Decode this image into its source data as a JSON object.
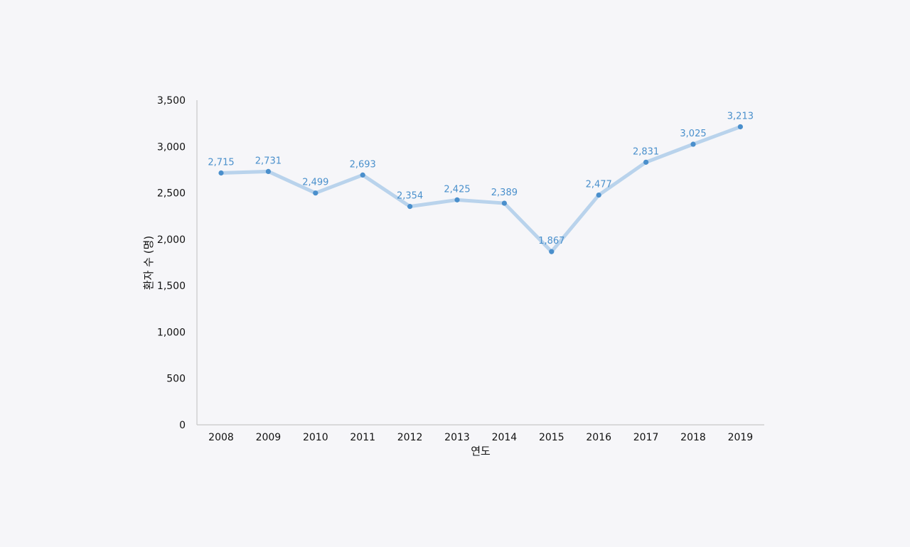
{
  "chart_data": {
    "type": "line",
    "title": "",
    "xlabel": "연도",
    "ylabel": "환자 수 (명)",
    "ylim": [
      0,
      3500
    ],
    "yticks": [
      0,
      500,
      1000,
      1500,
      2000,
      2500,
      3000,
      3500
    ],
    "ytick_labels": [
      "0",
      "500",
      "1,000",
      "1,500",
      "2,000",
      "2,500",
      "3,000",
      "3,500"
    ],
    "categories": [
      "2008",
      "2009",
      "2010",
      "2011",
      "2012",
      "2013",
      "2014",
      "2015",
      "2016",
      "2017",
      "2018",
      "2019"
    ],
    "values": [
      2715,
      2731,
      2499,
      2693,
      2354,
      2425,
      2389,
      1867,
      2477,
      2831,
      3025,
      3213
    ],
    "data_labels": [
      "2,715",
      "2,731",
      "2,499",
      "2,693",
      "2,354",
      "2,425",
      "2,389",
      "1,867",
      "2,477",
      "2,831",
      "3,025",
      "3,213"
    ],
    "grid": false,
    "legend": "none",
    "colors": {
      "line": "#b9d3ec",
      "marker": "#4a8fcc",
      "label": "#4a90cc",
      "axis": "#c8c8c8"
    }
  }
}
